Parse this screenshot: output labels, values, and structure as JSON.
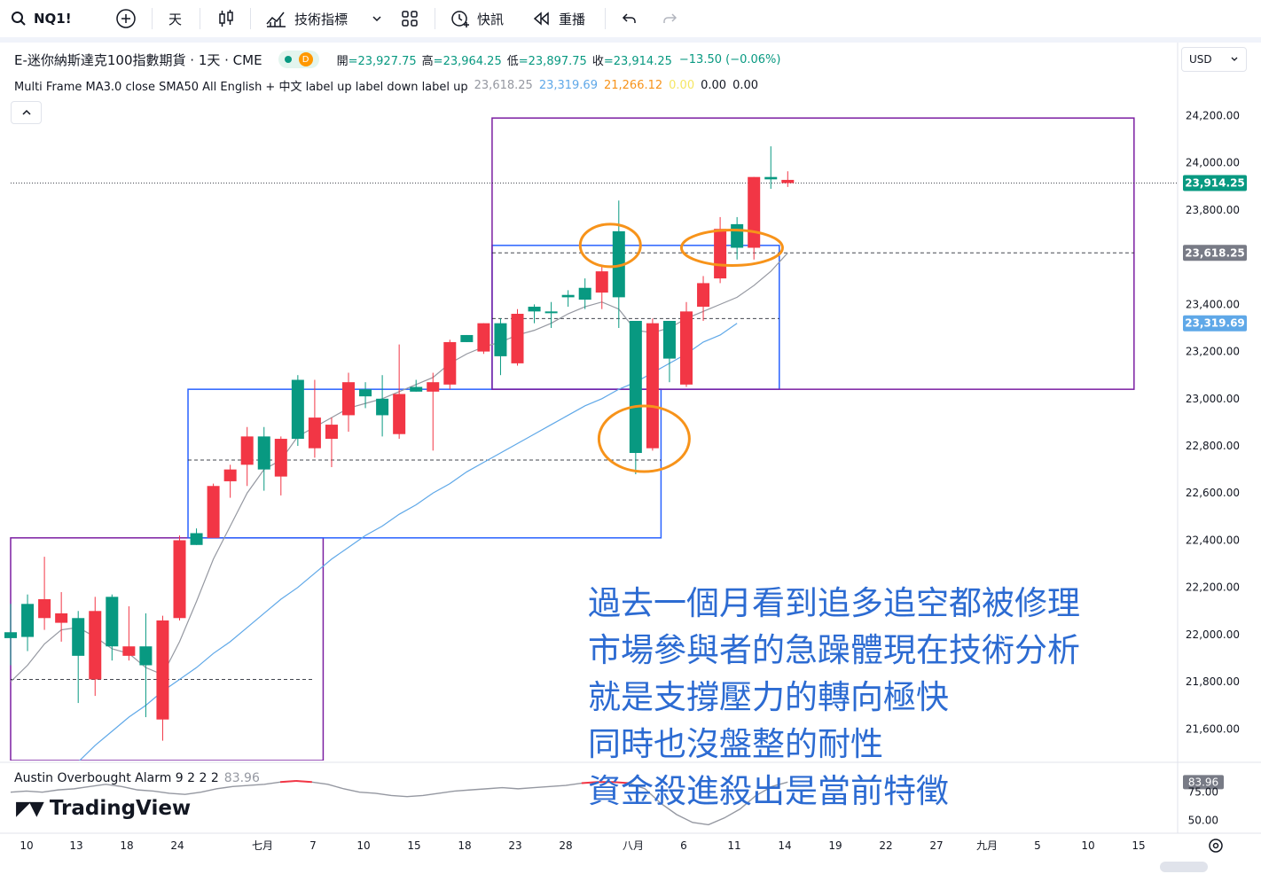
{
  "toolbar": {
    "symbol": "NQ1!",
    "interval": "天",
    "indicators_label": "技術指標",
    "alert_label": "快訊",
    "replay_label": "重播",
    "icons": [
      "search-icon",
      "add-symbol-icon",
      "bar-style-icon",
      "indicators-icon",
      "chevron-down-icon",
      "templates-icon",
      "alert-icon",
      "replay-icon",
      "undo-icon",
      "redo-icon"
    ]
  },
  "legend": {
    "title": "E-迷你納斯達克100指數期貨 · 1天 · CME",
    "d_badge": "D",
    "open_key": "開",
    "open": "=23,927.75",
    "high_key": "高",
    "high": "=23,964.25",
    "low_key": "低",
    "low": "=23,897.75",
    "close_key": "收",
    "close": "=23,914.25",
    "change": "−13.50 (−0.06%)",
    "indicator": "Multi Frame MA3.0 close SMA50 All English + 中文 label up label down label up",
    "ind_values": [
      {
        "text": "23,618.25",
        "color": "#9598a1"
      },
      {
        "text": "23,319.69",
        "color": "#5fa8e8"
      },
      {
        "text": "21,266.12",
        "color": "#f7931a"
      },
      {
        "text": "0.00",
        "color": "#f5e663"
      },
      {
        "text": "0.00",
        "color": "#131722"
      },
      {
        "text": "0.00",
        "color": "#131722"
      }
    ]
  },
  "currency": "USD",
  "price_axis": {
    "labels": [
      "24,200.00",
      "24,000.00",
      "23,800.00",
      "23,400.00",
      "23,200.00",
      "23,000.00",
      "22,800.00",
      "22,600.00",
      "22,400.00",
      "22,200.00",
      "22,000.00",
      "21,800.00",
      "21,600.00"
    ],
    "badges": [
      {
        "text": "23,914.25",
        "value": 23914.25,
        "bg": "#089981"
      },
      {
        "text": "23,618.25",
        "value": 23618.25,
        "bg": "#787b86"
      },
      {
        "text": "23,319.69",
        "value": 23319.69,
        "bg": "#5fa8e8"
      }
    ]
  },
  "time_axis": [
    "10",
    "13",
    "18",
    "24",
    "七月",
    "7",
    "10",
    "15",
    "18",
    "23",
    "28",
    "八月",
    "6",
    "11",
    "14",
    "19",
    "22",
    "27",
    "九月",
    "5",
    "10",
    "15"
  ],
  "chart_data": {
    "type": "candlestick",
    "symbol": "NQ1!",
    "interval": "1D",
    "ylim": [
      21466,
      24277
    ],
    "up_color": "#089981",
    "down_color": "#f23645",
    "candles": [
      {
        "o": 21985,
        "h": 22130,
        "l": 21870,
        "c": 22010
      },
      {
        "o": 21990,
        "h": 22170,
        "l": 21930,
        "c": 22130
      },
      {
        "o": 22150,
        "h": 22330,
        "l": 22020,
        "c": 22070
      },
      {
        "o": 22090,
        "h": 22180,
        "l": 21970,
        "c": 22050
      },
      {
        "o": 21910,
        "h": 22100,
        "l": 21710,
        "c": 22070
      },
      {
        "o": 22100,
        "h": 22160,
        "l": 21740,
        "c": 21810
      },
      {
        "o": 21950,
        "h": 22170,
        "l": 21890,
        "c": 22160
      },
      {
        "o": 21950,
        "h": 22120,
        "l": 21890,
        "c": 21910
      },
      {
        "o": 21870,
        "h": 22090,
        "l": 21650,
        "c": 21950
      },
      {
        "o": 22060,
        "h": 22080,
        "l": 21550,
        "c": 21640
      },
      {
        "o": 22400,
        "h": 22420,
        "l": 22060,
        "c": 22070
      },
      {
        "o": 22380,
        "h": 22450,
        "l": 22380,
        "c": 22430
      },
      {
        "o": 22630,
        "h": 22640,
        "l": 22410,
        "c": 22410
      },
      {
        "o": 22700,
        "h": 22720,
        "l": 22580,
        "c": 22650
      },
      {
        "o": 22840,
        "h": 22880,
        "l": 22630,
        "c": 22720
      },
      {
        "o": 22700,
        "h": 22880,
        "l": 22610,
        "c": 22840
      },
      {
        "o": 22830,
        "h": 22840,
        "l": 22590,
        "c": 22670
      },
      {
        "o": 22830,
        "h": 23100,
        "l": 22800,
        "c": 23080
      },
      {
        "o": 22920,
        "h": 23080,
        "l": 22750,
        "c": 22790
      },
      {
        "o": 22890,
        "h": 22920,
        "l": 22710,
        "c": 22830
      },
      {
        "o": 23070,
        "h": 23110,
        "l": 22860,
        "c": 22930
      },
      {
        "o": 23010,
        "h": 23070,
        "l": 22960,
        "c": 23040
      },
      {
        "o": 22930,
        "h": 23100,
        "l": 22840,
        "c": 23000
      },
      {
        "o": 23020,
        "h": 23230,
        "l": 22830,
        "c": 22850
      },
      {
        "o": 23030,
        "h": 23080,
        "l": 23030,
        "c": 23050
      },
      {
        "o": 23070,
        "h": 23110,
        "l": 22780,
        "c": 23030
      },
      {
        "o": 23240,
        "h": 23250,
        "l": 23040,
        "c": 23060
      },
      {
        "o": 23240,
        "h": 23270,
        "l": 23240,
        "c": 23270
      },
      {
        "o": 23320,
        "h": 23320,
        "l": 23190,
        "c": 23200
      },
      {
        "o": 23180,
        "h": 23340,
        "l": 23100,
        "c": 23320
      },
      {
        "o": 23360,
        "h": 23380,
        "l": 23140,
        "c": 23150
      },
      {
        "o": 23370,
        "h": 23400,
        "l": 23320,
        "c": 23390
      },
      {
        "o": 23370,
        "h": 23410,
        "l": 23300,
        "c": 23370
      },
      {
        "o": 23430,
        "h": 23460,
        "l": 23390,
        "c": 23440
      },
      {
        "o": 23420,
        "h": 23510,
        "l": 23380,
        "c": 23470
      },
      {
        "o": 23540,
        "h": 23560,
        "l": 23380,
        "c": 23450
      },
      {
        "o": 23430,
        "h": 23840,
        "l": 23300,
        "c": 23710
      },
      {
        "o": 22770,
        "h": 23330,
        "l": 22680,
        "c": 23330
      },
      {
        "o": 23320,
        "h": 23340,
        "l": 22780,
        "c": 22790
      },
      {
        "o": 23170,
        "h": 23330,
        "l": 23070,
        "c": 23330
      },
      {
        "o": 23370,
        "h": 23410,
        "l": 23050,
        "c": 23060
      },
      {
        "o": 23490,
        "h": 23520,
        "l": 23330,
        "c": 23390
      },
      {
        "o": 23720,
        "h": 23770,
        "l": 23490,
        "c": 23510
      },
      {
        "o": 23640,
        "h": 23770,
        "l": 23590,
        "c": 23740
      },
      {
        "o": 23940,
        "h": 23940,
        "l": 23590,
        "c": 23640
      },
      {
        "o": 23930,
        "h": 24070,
        "l": 23890,
        "c": 23940
      },
      {
        "o": 23927.75,
        "h": 23964.25,
        "l": 23897.75,
        "c": 23914.25
      }
    ],
    "ma_short": [
      21800,
      21870,
      21960,
      22020,
      22030,
      21990,
      21940,
      21920,
      21860,
      21830,
      21970,
      22140,
      22320,
      22460,
      22600,
      22700,
      22740,
      22840,
      22880,
      22920,
      22960,
      22980,
      23000,
      23030,
      23060,
      23090,
      23150,
      23190,
      23220,
      23240,
      23270,
      23290,
      23320,
      23360,
      23390,
      23410,
      23380,
      23290,
      23280,
      23300,
      23340,
      23370,
      23400,
      23430,
      23480,
      23540,
      23618.25
    ],
    "ma_long_start_index": 4,
    "ma_long": [
      21460,
      21530,
      21590,
      21650,
      21700,
      21760,
      21810,
      21860,
      21920,
      21970,
      22030,
      22090,
      22150,
      22200,
      22260,
      22320,
      22370,
      22420,
      22460,
      22510,
      22550,
      22600,
      22640,
      22690,
      22730,
      22770,
      22810,
      22850,
      22890,
      22930,
      22970,
      23000,
      23040,
      23070,
      23110,
      23150,
      23190,
      23240,
      23270,
      23319.69
    ],
    "price_lines": [
      {
        "value": 23618.25,
        "style": "dashed"
      },
      {
        "value": 23340,
        "style": "dashed"
      },
      {
        "value": 22740,
        "style": "dashed"
      },
      {
        "value": 21810,
        "style": "dashed"
      },
      {
        "value": 23914.25,
        "style": "dotted"
      }
    ],
    "boxes": [
      {
        "color": "#7b1fa2",
        "start": 0,
        "end": 18.5,
        "top": 22410,
        "bottom": 21300
      },
      {
        "color": "#2962ff",
        "start": 10.5,
        "end": 38.5,
        "top": 23040,
        "bottom": 22410
      },
      {
        "color": "#2962ff",
        "start": 28.5,
        "end": 45.5,
        "top": 23650,
        "bottom": 23040
      },
      {
        "color": "#7b1fa2",
        "start": 28.5,
        "end": 66.5,
        "top": 24190,
        "bottom": 23040
      }
    ],
    "circles": [
      {
        "index": 35.5,
        "value": 23650
      },
      {
        "index": 37.5,
        "value": 22830
      },
      {
        "index": 42.7,
        "value": 23640
      }
    ]
  },
  "oscillator": {
    "name": "Austin Overbought Alarm 9 2 2 2",
    "value": "83.96",
    "ylim": [
      40,
      100
    ],
    "labels": [
      "83.96",
      "75.00",
      "50.00"
    ],
    "values": [
      75,
      76,
      75,
      77,
      78,
      80,
      82,
      80,
      77,
      76,
      74,
      73,
      75,
      78,
      80,
      81,
      82,
      84,
      85,
      84,
      82,
      78,
      75,
      74,
      72,
      71,
      72,
      74,
      76,
      77,
      78,
      79,
      78,
      79,
      80,
      81,
      83,
      84,
      84,
      83,
      78,
      65,
      55,
      48,
      46,
      52,
      60,
      72,
      80,
      83.96
    ]
  },
  "annotation": {
    "lines": [
      "過去一個月看到追多追空都被修理",
      "市場參與者的急躁體現在技術分析",
      "就是支撐壓力的轉向極快",
      "同時也沒盤整的耐性",
      "資金殺進殺出是當前特徵"
    ]
  },
  "brand": "TradingView"
}
